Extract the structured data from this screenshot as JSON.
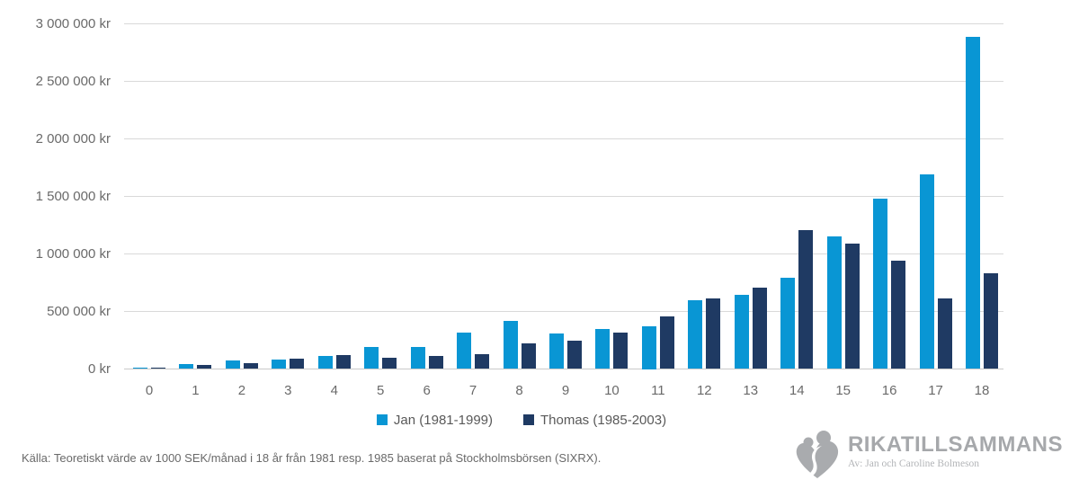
{
  "chart_data": {
    "type": "bar",
    "title": "",
    "xlabel": "",
    "ylabel": "",
    "ylim": [
      0,
      3000000
    ],
    "grid": true,
    "legend_position": "bottom",
    "categories": [
      "0",
      "1",
      "2",
      "3",
      "4",
      "5",
      "6",
      "7",
      "8",
      "9",
      "10",
      "11",
      "12",
      "13",
      "14",
      "15",
      "16",
      "17",
      "18"
    ],
    "series": [
      {
        "name": "Jan (1981-1999)",
        "color": "#0996d4",
        "values": [
          15000,
          40000,
          75000,
          80000,
          110000,
          195000,
          190000,
          320000,
          420000,
          310000,
          345000,
          375000,
          595000,
          645000,
          790000,
          1150000,
          1480000,
          1690000,
          2890000
        ]
      },
      {
        "name": "Thomas (1985-2003)",
        "color": "#1f3a63",
        "values": [
          12000,
          35000,
          50000,
          90000,
          120000,
          95000,
          115000,
          130000,
          225000,
          245000,
          315000,
          460000,
          610000,
          705000,
          1205000,
          1090000,
          940000,
          610000,
          835000
        ]
      }
    ],
    "y_ticks": [
      {
        "value": 0,
        "label": "0 kr"
      },
      {
        "value": 500000,
        "label": "500 000 kr"
      },
      {
        "value": 1000000,
        "label": "1 000 000 kr"
      },
      {
        "value": 1500000,
        "label": "1 500 000 kr"
      },
      {
        "value": 2000000,
        "label": "2 000 000 kr"
      },
      {
        "value": 2500000,
        "label": "2 500 000 kr"
      },
      {
        "value": 3000000,
        "label": "3 000 000 kr"
      }
    ]
  },
  "footer": {
    "source": "Källa: Teoretiskt värde av 1000 SEK/månad i 18 år från 1981 resp. 1985 baserat på Stockholmsbörsen (SIXRX)."
  },
  "branding": {
    "name": "RIKATILLSAMMANS",
    "byline": "Av: Jan och Caroline Bolmeson",
    "logo_icon": "people-heart-icon",
    "color": "#a6a8ab"
  }
}
